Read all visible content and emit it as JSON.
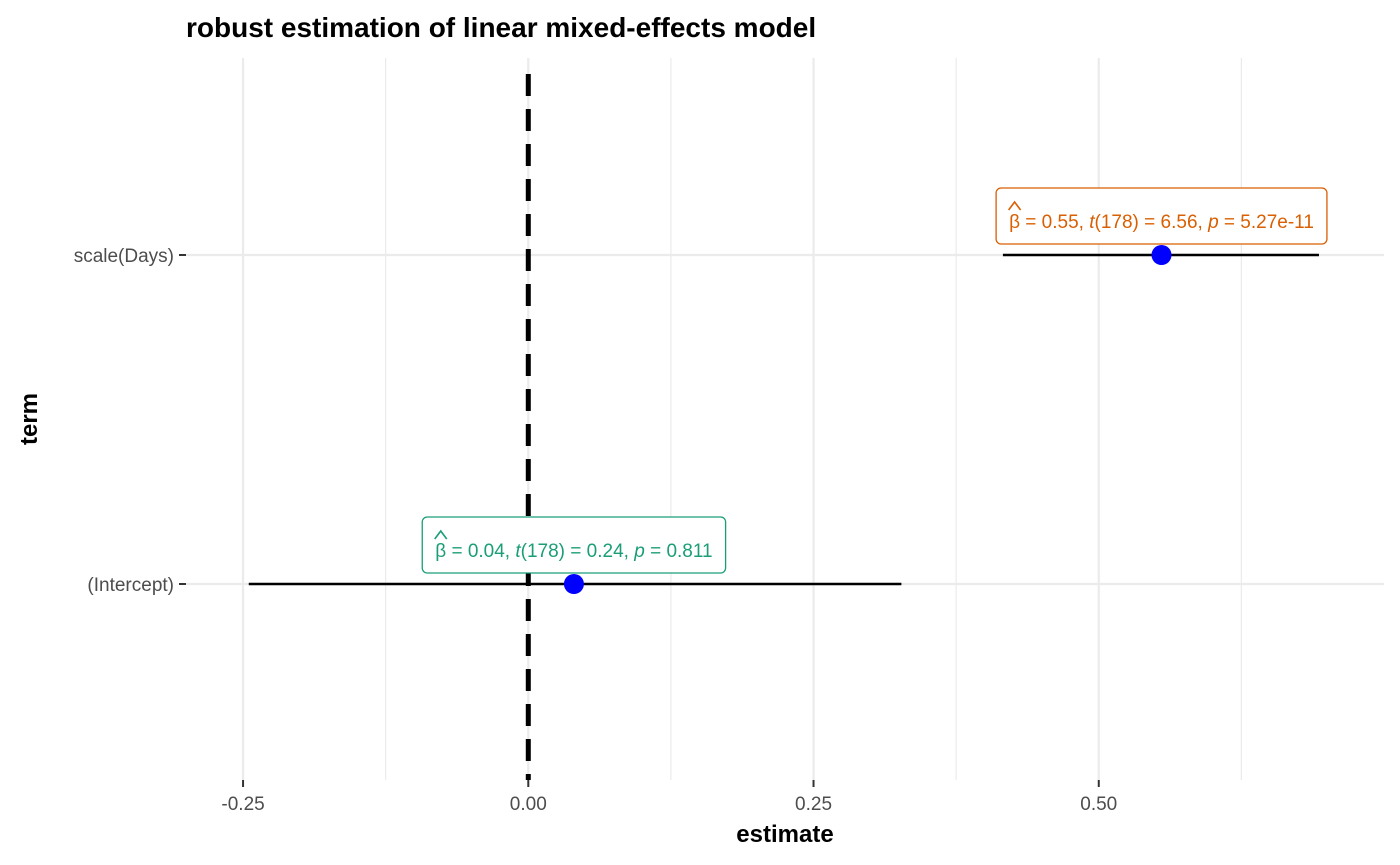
{
  "chart_data": {
    "type": "scatter",
    "title": "robust estimation of linear mixed-effects model",
    "xlabel": "estimate",
    "ylabel": "term",
    "xlim": [
      -0.3,
      0.75
    ],
    "x_ticks": [
      -0.25,
      0.0,
      0.25,
      0.5
    ],
    "x_tick_labels": [
      "-0.25",
      "0.00",
      "0.25",
      "0.50"
    ],
    "x_minor_ticks": [
      -0.125,
      0.125,
      0.375,
      0.625
    ],
    "grid": true,
    "reference_line": {
      "x": 0.0,
      "style": "dashed"
    },
    "point_color": "#0000FF",
    "errorbar_color": "#000000",
    "terms": [
      {
        "name": "(Intercept)",
        "estimate": 0.04,
        "conf_low": -0.245,
        "conf_high": 0.327,
        "label_color": "#1B9E77",
        "label": {
          "beta_symbol": "β",
          "beta_value": " = 0.04, ",
          "t_symbol": "t",
          "t_df": "(178)",
          "t_value": " = 0.24, ",
          "p_symbol": "p",
          "p_value": " = 0.811"
        }
      },
      {
        "name": "scale(Days)",
        "estimate": 0.555,
        "conf_low": 0.416,
        "conf_high": 0.693,
        "label_color": "#D95F02",
        "label": {
          "beta_symbol": "β",
          "beta_value": " = 0.55, ",
          "t_symbol": "t",
          "t_df": "(178)",
          "t_value": " = 6.56, ",
          "p_symbol": "p",
          "p_value": " = 5.27e-11"
        }
      }
    ]
  }
}
